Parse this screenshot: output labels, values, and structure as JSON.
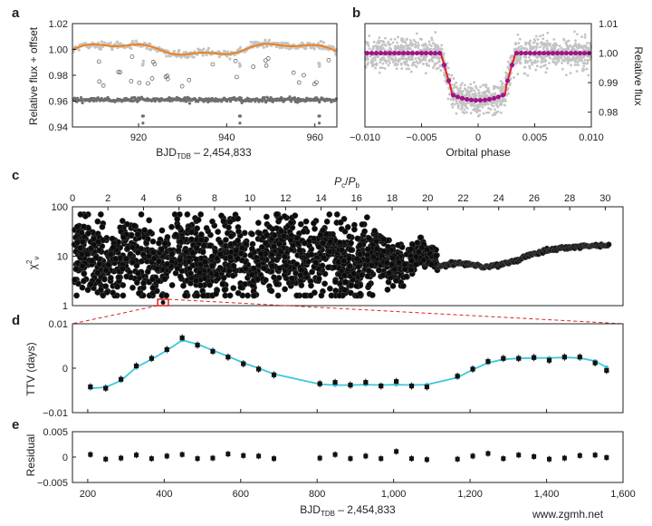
{
  "chart_data": [
    {
      "panel": "a",
      "type": "scatter",
      "xlabel": "BJD",
      "xlabel_sub": "TDB",
      "xlabel_offset": " – 2,454,833",
      "ylabel": "Relative flux + offset",
      "xlim": [
        905,
        965
      ],
      "ylim": [
        0.94,
        1.02
      ],
      "xticks": [
        "920",
        "940",
        "960"
      ],
      "yticks": [
        "0.94",
        "0.96",
        "0.98",
        "1.00",
        "1.02"
      ],
      "series": [
        {
          "name": "upper light curve",
          "baseline": 1.0,
          "trend_amplitude": 0.004
        },
        {
          "name": "lower light curve",
          "baseline": 0.961,
          "transit_depth": 0.018,
          "transit_times": [
            921,
            943,
            961
          ]
        }
      ]
    },
    {
      "panel": "b",
      "type": "scatter",
      "xlabel": "Orbital phase",
      "ylabel": "Relative flux",
      "xlim": [
        -0.01,
        0.01
      ],
      "ylim": [
        0.975,
        1.01
      ],
      "xticks": [
        "−0.010",
        "−0.005",
        "0",
        "0.005",
        "0.010"
      ],
      "yticks": [
        "0.98",
        "0.99",
        "1.00",
        "1.01"
      ],
      "transit": {
        "depth": 0.016,
        "ingress": -0.0033,
        "egress": 0.0033,
        "floor": 0.984
      }
    },
    {
      "panel": "c",
      "type": "scatter",
      "xlabel_top_num": "P",
      "xlabel_top_num_sub": "c",
      "xlabel_top_den": "P",
      "xlabel_top_den_sub": "b",
      "ylabel": "χ",
      "ylabel_sub": "ν",
      "ylabel_sup": "2",
      "xlim": [
        0,
        31
      ],
      "ylim_log": [
        1,
        100
      ],
      "xticks": [
        "0",
        "2",
        "4",
        "6",
        "8",
        "10",
        "12",
        "14",
        "16",
        "18",
        "20",
        "22",
        "24",
        "26",
        "28",
        "30"
      ],
      "yticks": [
        "1",
        "10",
        "100"
      ],
      "highlight": {
        "x_range": [
          4.8,
          5.4
        ]
      }
    },
    {
      "panel": "d",
      "type": "line",
      "xlabel": "",
      "ylabel": "TTV (days)",
      "xlim": [
        160,
        1600
      ],
      "ylim": [
        -0.01,
        0.01
      ],
      "yticks": [
        "−0.01",
        "0",
        "0.01"
      ],
      "x": [
        207,
        247,
        287,
        327,
        367,
        407,
        447,
        487,
        527,
        567,
        607,
        647,
        687,
        807,
        847,
        887,
        927,
        967,
        1007,
        1047,
        1087,
        1167,
        1207,
        1247,
        1287,
        1327,
        1367,
        1407,
        1447,
        1487,
        1527,
        1557
      ],
      "obs": [
        -0.0042,
        -0.0045,
        -0.0025,
        0.0005,
        0.0022,
        0.0042,
        0.0068,
        0.0052,
        0.0038,
        0.0025,
        0.001,
        -0.0002,
        -0.0015,
        -0.0035,
        -0.0032,
        -0.0038,
        -0.0032,
        -0.004,
        -0.003,
        -0.004,
        -0.0042,
        -0.0018,
        -0.0002,
        0.0015,
        0.0022,
        0.0022,
        0.0024,
        0.0018,
        0.0025,
        0.0025,
        0.0012,
        -0.0005
      ],
      "model": [
        -0.0045,
        -0.0043,
        -0.0028,
        0.0002,
        0.002,
        0.004,
        0.0063,
        0.0054,
        0.004,
        0.0027,
        0.0012,
        0.0,
        -0.0013,
        -0.0036,
        -0.0038,
        -0.0038,
        -0.0037,
        -0.0038,
        -0.0037,
        -0.0038,
        -0.0037,
        -0.0021,
        -0.0003,
        0.0012,
        0.002,
        0.0022,
        0.0023,
        0.0023,
        0.0024,
        0.0023,
        0.0016,
        0.0002
      ]
    },
    {
      "panel": "e",
      "type": "scatter",
      "xlabel": "BJD",
      "xlabel_sub": "TDB",
      "xlabel_offset": " – 2,454,833",
      "ylabel": "Residual",
      "xlim": [
        160,
        1600
      ],
      "ylim": [
        -0.005,
        0.005
      ],
      "xticks": [
        "200",
        "400",
        "600",
        "800",
        "1,000",
        "1,200",
        "1,400",
        "1,600"
      ],
      "yticks": [
        "−0.005",
        "0",
        "0.005"
      ],
      "x": [
        207,
        247,
        287,
        327,
        367,
        407,
        447,
        487,
        527,
        567,
        607,
        647,
        687,
        807,
        847,
        887,
        927,
        967,
        1007,
        1047,
        1087,
        1167,
        1207,
        1247,
        1287,
        1327,
        1367,
        1407,
        1447,
        1487,
        1527,
        1557
      ],
      "values": [
        0.0005,
        -0.0004,
        -0.0002,
        0.0004,
        -0.0003,
        0.0002,
        0.0005,
        -0.0003,
        -0.0002,
        0.0006,
        0.0003,
        0.0002,
        -0.0003,
        -0.0002,
        0.0005,
        -0.0003,
        0.0002,
        -0.0003,
        0.0011,
        -0.0003,
        -0.0005,
        -0.0004,
        0.0002,
        0.0007,
        -0.0003,
        0.0004,
        0.0001,
        -0.0004,
        -0.0002,
        0.0003,
        0.0004,
        -0.0001
      ]
    }
  ],
  "colors": {
    "orange_trend": "#f07f1f",
    "gray_points": "#c4c4c4",
    "dark_gray_points": "#6e6e6e",
    "red_model": "#e8192a",
    "magenta_binned": "#a0148c",
    "cyan_model": "#3cc8dc",
    "highlight_red": "#e02020"
  },
  "panel_labels": [
    "a",
    "b",
    "c",
    "d",
    "e"
  ],
  "watermark": "www.zgmh.net"
}
